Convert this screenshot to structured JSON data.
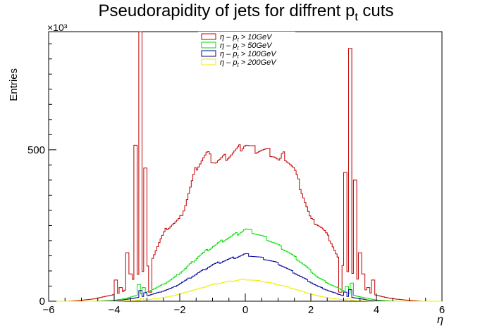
{
  "chart_data": {
    "type": "step",
    "title": "Pseudorapidity of jets for diffrent p_t cuts",
    "title_parts": {
      "before": "Pseudorapidity of jets for diffrent p",
      "sub": "t",
      "after": " cuts"
    },
    "xlabel": "η",
    "ylabel": "Entries",
    "y_multiplier": "×10³",
    "xlim": [
      -6,
      6
    ],
    "ylim": [
      0,
      890
    ],
    "xticks": [
      -6,
      -4,
      -2,
      0,
      2,
      4,
      6
    ],
    "yticks": [
      0,
      500
    ],
    "bins": {
      "start": -6,
      "stop": 6,
      "count": 240
    },
    "legend_position": "top-center",
    "series": [
      {
        "name": "η – p_t > 10GeV",
        "legend_parts": {
          "before": "η – p",
          "sub": "t",
          "after": " > 10GeV"
        },
        "color": "#c00000",
        "anchors": [
          [
            -6,
            0
          ],
          [
            -5.4,
            0
          ],
          [
            -5.0,
            3
          ],
          [
            -4.6,
            8
          ],
          [
            -4.3,
            15
          ],
          [
            -4.0,
            22
          ],
          [
            -3.75,
            30
          ],
          [
            -3.6,
            45
          ],
          [
            -3.5,
            60
          ],
          [
            -3.4,
            75
          ],
          [
            -3.3,
            90
          ],
          [
            -3.1,
            100
          ],
          [
            -3.0,
            110
          ],
          [
            -2.8,
            150
          ],
          [
            -2.6,
            200
          ],
          [
            -2.4,
            240
          ],
          [
            -2.2,
            255
          ],
          [
            -2.0,
            270
          ],
          [
            -1.85,
            310
          ],
          [
            -1.7,
            365
          ],
          [
            -1.5,
            440
          ],
          [
            -1.3,
            470
          ],
          [
            -1.15,
            490
          ],
          [
            -1.05,
            470
          ],
          [
            -0.9,
            460
          ],
          [
            -0.7,
            470
          ],
          [
            -0.5,
            480
          ],
          [
            -0.3,
            495
          ],
          [
            -0.1,
            510
          ],
          [
            0,
            520
          ],
          [
            0.1,
            512
          ],
          [
            0.3,
            500
          ],
          [
            0.5,
            500
          ],
          [
            0.7,
            495
          ],
          [
            0.9,
            480
          ],
          [
            1.05,
            460
          ],
          [
            1.15,
            485
          ],
          [
            1.3,
            465
          ],
          [
            1.5,
            435
          ],
          [
            1.7,
            370
          ],
          [
            1.85,
            320
          ],
          [
            2.0,
            270
          ],
          [
            2.2,
            255
          ],
          [
            2.4,
            235
          ],
          [
            2.6,
            200
          ],
          [
            2.8,
            150
          ],
          [
            3.0,
            110
          ],
          [
            3.1,
            100
          ],
          [
            3.3,
            90
          ],
          [
            3.4,
            75
          ],
          [
            3.5,
            60
          ],
          [
            3.6,
            45
          ],
          [
            3.75,
            30
          ],
          [
            4.0,
            20
          ],
          [
            4.3,
            12
          ],
          [
            4.6,
            7
          ],
          [
            5.0,
            3
          ],
          [
            5.4,
            0
          ],
          [
            6,
            0
          ]
        ],
        "spikes": [
          [
            -3.95,
            70
          ],
          [
            -3.8,
            45
          ],
          [
            -3.6,
            160
          ],
          [
            -3.5,
            90
          ],
          [
            -3.35,
            515
          ],
          [
            -3.2,
            900
          ],
          [
            -3.05,
            440
          ],
          [
            -2.9,
            30
          ],
          [
            2.9,
            30
          ],
          [
            3.05,
            425
          ],
          [
            3.2,
            835
          ],
          [
            3.35,
            400
          ],
          [
            3.5,
            160
          ],
          [
            3.6,
            90
          ],
          [
            3.75,
            45
          ],
          [
            3.9,
            70
          ]
        ]
      },
      {
        "name": "η – p_t > 50GeV",
        "legend_parts": {
          "before": "η – p",
          "sub": "t",
          "after": " > 50GeV"
        },
        "color": "#00dd00",
        "anchors": [
          [
            -6,
            0
          ],
          [
            -4.6,
            0
          ],
          [
            -4.0,
            3
          ],
          [
            -3.6,
            10
          ],
          [
            -3.3,
            20
          ],
          [
            -3.0,
            30
          ],
          [
            -2.6,
            50
          ],
          [
            -2.2,
            75
          ],
          [
            -1.8,
            110
          ],
          [
            -1.4,
            150
          ],
          [
            -1.0,
            180
          ],
          [
            -0.6,
            205
          ],
          [
            -0.2,
            225
          ],
          [
            0,
            238
          ],
          [
            0.2,
            230
          ],
          [
            0.6,
            210
          ],
          [
            1.0,
            185
          ],
          [
            1.4,
            155
          ],
          [
            1.8,
            120
          ],
          [
            2.2,
            80
          ],
          [
            2.6,
            55
          ],
          [
            3.0,
            35
          ],
          [
            3.3,
            20
          ],
          [
            3.6,
            12
          ],
          [
            4.0,
            4
          ],
          [
            4.6,
            0
          ],
          [
            6,
            0
          ]
        ],
        "spikes": [
          [
            -3.25,
            55
          ],
          [
            -3.1,
            45
          ],
          [
            3.1,
            48
          ],
          [
            3.25,
            60
          ]
        ]
      },
      {
        "name": "η – p_t > 100GeV",
        "legend_parts": {
          "before": "η – p",
          "sub": "t",
          "after": " > 100GeV"
        },
        "color": "#000099",
        "anchors": [
          [
            -6,
            0
          ],
          [
            -4.4,
            0
          ],
          [
            -3.8,
            3
          ],
          [
            -3.4,
            10
          ],
          [
            -3.0,
            18
          ],
          [
            -2.6,
            30
          ],
          [
            -2.2,
            45
          ],
          [
            -1.8,
            70
          ],
          [
            -1.4,
            95
          ],
          [
            -1.0,
            120
          ],
          [
            -0.6,
            135
          ],
          [
            -0.2,
            148
          ],
          [
            0,
            155
          ],
          [
            0.2,
            150
          ],
          [
            0.6,
            140
          ],
          [
            1.0,
            125
          ],
          [
            1.4,
            100
          ],
          [
            1.8,
            75
          ],
          [
            2.2,
            50
          ],
          [
            2.6,
            32
          ],
          [
            3.0,
            18
          ],
          [
            3.4,
            10
          ],
          [
            3.8,
            3
          ],
          [
            4.4,
            0
          ],
          [
            6,
            0
          ]
        ],
        "spikes": [
          [
            -3.2,
            35
          ],
          [
            -3.05,
            28
          ],
          [
            3.05,
            30
          ],
          [
            3.2,
            38
          ]
        ]
      },
      {
        "name": "η – p_t > 200GeV",
        "legend_parts": {
          "before": "η – p",
          "sub": "t",
          "after": " > 200GeV"
        },
        "color": "#eeee00",
        "anchors": [
          [
            -6,
            0
          ],
          [
            -4.0,
            0
          ],
          [
            -3.4,
            2
          ],
          [
            -3.0,
            5
          ],
          [
            -2.6,
            10
          ],
          [
            -2.2,
            18
          ],
          [
            -1.8,
            30
          ],
          [
            -1.4,
            42
          ],
          [
            -1.0,
            55
          ],
          [
            -0.6,
            63
          ],
          [
            -0.2,
            70
          ],
          [
            0,
            72
          ],
          [
            0.2,
            70
          ],
          [
            0.6,
            64
          ],
          [
            1.0,
            55
          ],
          [
            1.4,
            44
          ],
          [
            1.8,
            30
          ],
          [
            2.2,
            18
          ],
          [
            2.6,
            10
          ],
          [
            3.0,
            5
          ],
          [
            3.4,
            2
          ],
          [
            4.0,
            0
          ],
          [
            6,
            0
          ]
        ],
        "spikes": [
          [
            -3.15,
            10
          ],
          [
            3.15,
            10
          ]
        ]
      }
    ]
  }
}
